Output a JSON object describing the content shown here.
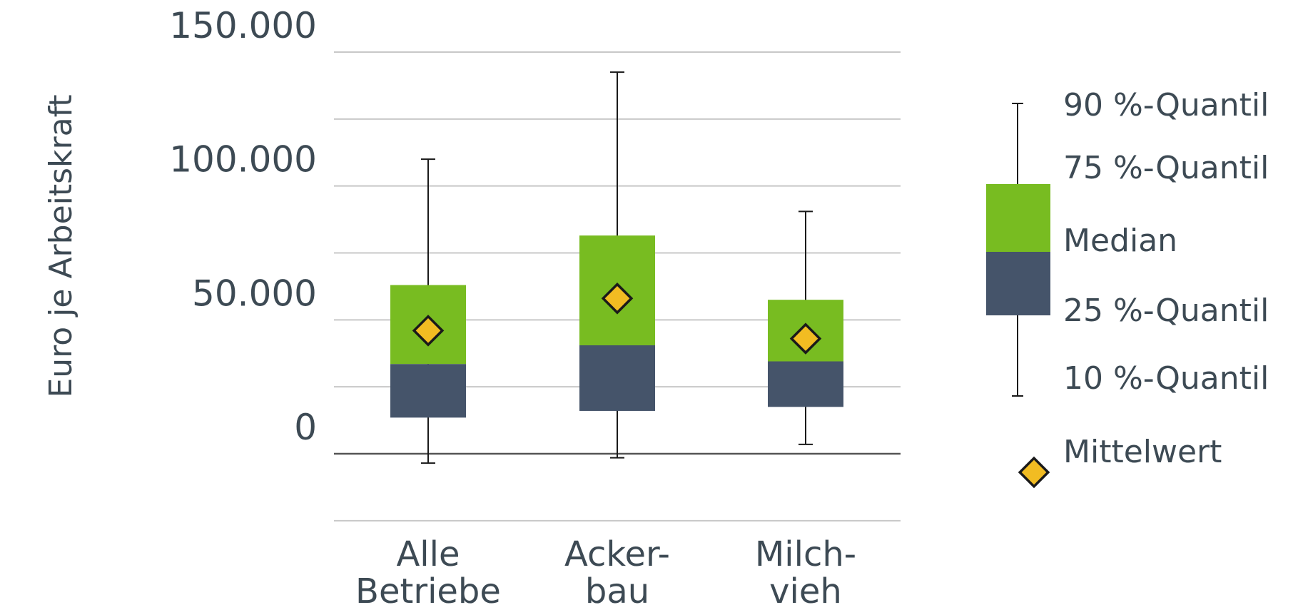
{
  "chart_data": {
    "type": "boxplot",
    "ylabel": "Euro je Arbeitskraft",
    "ylim": [
      -50000,
      150000
    ],
    "y_ticks": [
      {
        "value": 150000,
        "label": "150.000"
      },
      {
        "value": 100000,
        "label": "100.000"
      },
      {
        "value": 50000,
        "label": "50.000"
      },
      {
        "value": 0,
        "label": "0"
      }
    ],
    "gridlines": [
      -25000,
      0,
      25000,
      50000,
      75000,
      100000,
      125000,
      150000
    ],
    "categories": [
      {
        "lines": [
          "Alle",
          "Betriebe"
        ],
        "q10": -3500,
        "q25": 13500,
        "median": 33500,
        "q75": 63000,
        "q90": 110000,
        "mean": 46000
      },
      {
        "lines": [
          "Acker-",
          "bau"
        ],
        "q10": -1500,
        "q25": 16000,
        "median": 40500,
        "q75": 81500,
        "q90": 142500,
        "mean": 58000
      },
      {
        "lines": [
          "Milch-",
          "vieh"
        ],
        "q10": 3500,
        "q25": 17500,
        "median": 34500,
        "q75": 57500,
        "q90": 90500,
        "mean": 43000
      }
    ],
    "legend": {
      "position": "right",
      "q90": "90 %-Quantil",
      "q75": "75 %-Quantil",
      "median": "Median",
      "q25": "25 %-Quantil",
      "q10": "10 %-Quantil",
      "mean": "Mittelwert"
    },
    "colors": {
      "upper_box": "#78bc21",
      "lower_box": "#45546a",
      "mean_marker": "#f2bc22",
      "whisker": "#1a1a1a",
      "grid": "#c8c8c8",
      "zero_line": "#555555",
      "text": "#3d4a54"
    }
  }
}
